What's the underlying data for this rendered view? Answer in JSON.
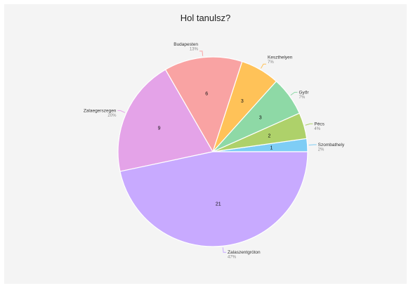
{
  "chart_data": {
    "type": "pie",
    "title": "Hol tanulsz?",
    "slices": [
      {
        "label": "Szombathely",
        "value": 1,
        "percent": "2%",
        "color": "#7ecdf5"
      },
      {
        "label": "Pécs",
        "value": 2,
        "percent": "4%",
        "color": "#aed16a"
      },
      {
        "label": "Győr",
        "value": 3,
        "percent": "7%",
        "color": "#8ed9a6"
      },
      {
        "label": "Keszthelyen",
        "value": 3,
        "percent": "7%",
        "color": "#ffc258"
      },
      {
        "label": "Budapesten",
        "value": 6,
        "percent": "13%",
        "color": "#f9a3a3"
      },
      {
        "label": "Zalaegerszegen",
        "value": 9,
        "percent": "20%",
        "color": "#e4a3e8"
      },
      {
        "label": "Zalaszentgróton",
        "value": 21,
        "percent": "47%",
        "color": "#c8aaff"
      }
    ]
  }
}
